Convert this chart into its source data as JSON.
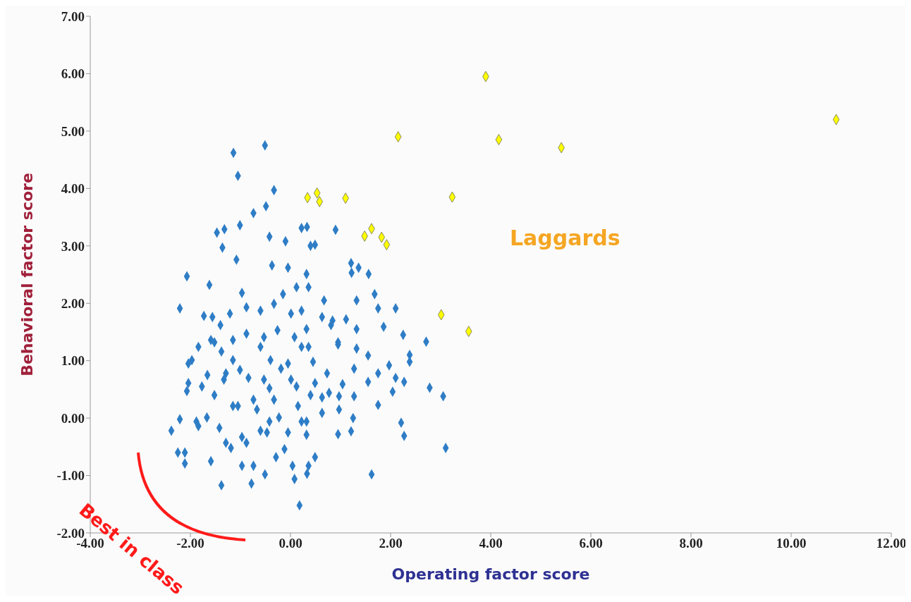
{
  "chart_data": {
    "type": "scatter",
    "xlabel": "Operating factor score",
    "ylabel": "Behavioral factor score",
    "marker": "diamond",
    "grid": false,
    "legend": false,
    "xlim": [
      -4,
      12
    ],
    "xticks": [
      {
        "value": -4,
        "label": "-4.00"
      },
      {
        "value": -2,
        "label": "-2.00"
      },
      {
        "value": 0,
        "label": "0.00"
      },
      {
        "value": 2,
        "label": "2.00"
      },
      {
        "value": 4,
        "label": "4.00"
      },
      {
        "value": 6,
        "label": "6.00"
      },
      {
        "value": 8,
        "label": "8.00"
      },
      {
        "value": 10,
        "label": "10.00"
      },
      {
        "value": 12,
        "label": "12.00"
      }
    ],
    "ylim": [
      -2,
      7
    ],
    "yticks": [
      {
        "value": -2,
        "label": "-2.00"
      },
      {
        "value": -1,
        "label": "-1.00"
      },
      {
        "value": 0,
        "label": "0.00"
      },
      {
        "value": 1,
        "label": "1.00"
      },
      {
        "value": 2,
        "label": "2.00"
      },
      {
        "value": 3,
        "label": "3.00"
      },
      {
        "value": 4,
        "label": "4.00"
      },
      {
        "value": 5,
        "label": "5.00"
      },
      {
        "value": 6,
        "label": "6.00"
      },
      {
        "value": 7,
        "label": "7.00"
      }
    ],
    "annotations": [
      "Laggards",
      "Best in class"
    ],
    "series": [
      {
        "color": "#2e7dc6",
        "x": [
          -0.51,
          -1.14,
          -1.05,
          -0.33,
          -0.49,
          -0.74,
          -1.01,
          -1.47,
          -1.32,
          -1.36,
          -1.08,
          -2.07,
          -1.62,
          -2.21,
          -0.97,
          -0.42,
          -0.1,
          0.22,
          0.4,
          -0.37,
          -0.05,
          0.32,
          0.12,
          -0.15,
          0.33,
          0.9,
          0.49,
          1.21,
          1.36,
          1.22,
          1.56,
          0.36,
          0.67,
          1.32,
          1.68,
          1.75,
          2.1,
          0.81,
          1.11,
          1.32,
          1.86,
          2.25,
          2.71,
          0.95,
          0.32,
          2.38,
          2.38,
          1.97,
          1.75,
          1.55,
          2.1,
          2.27,
          2.04,
          2.78,
          3.05,
          1.75,
          1.27,
          0.97,
          1.25,
          0.95,
          1.21,
          2.21,
          2.27,
          3.1,
          1.62,
          0.49,
          0.33,
          1.27,
          1.32,
          0.95,
          1.55,
          1.04,
          0.45,
          0.63,
          0.32,
          0.73,
          -1.97,
          -2.07,
          -1.52,
          -1.66,
          -2.21,
          -1.88,
          -1.67,
          -2.38,
          -2.11,
          -1.59,
          -1.38,
          -1.52,
          -1.33,
          -1.15,
          -1.42,
          -1.19,
          -0.97,
          -0.78,
          -0.51,
          -0.29,
          0.04,
          0.18,
          -0.05,
          -0.6,
          -0.97,
          -0.74,
          -1.05,
          -0.42,
          -0.19,
          -0.84,
          -1.38,
          -0.6,
          0.22,
          0.12,
          0.4,
          0.22,
          0.32,
          -0.23,
          -0.42,
          -1.73,
          -1.56,
          -1.4,
          -1.21,
          -0.88,
          -0.6,
          -0.33,
          0.01,
          0.22,
          0.63,
          0.84,
          -0.88,
          -1.15,
          -0.53,
          -0.26,
          0.08,
          0.36,
          -1.59,
          -1.84,
          -2.04,
          -0.05,
          -0.4,
          -1.01,
          -1.29,
          -1.77,
          -2.04,
          -0.53,
          0.01,
          0.49,
          0.77,
          -0.33,
          -0.67,
          -1.15,
          0.15,
          0.63,
          -0.47,
          -0.88,
          -0.12,
          -1.29,
          -1.84,
          -2.25,
          -2.11,
          -0.74,
          0.36,
          0.08,
          0.97
        ],
        "values": [
          4.75,
          4.62,
          4.22,
          3.97,
          3.69,
          3.57,
          3.36,
          3.23,
          3.29,
          2.97,
          2.76,
          2.47,
          2.32,
          1.91,
          2.18,
          3.16,
          3.08,
          3.31,
          3,
          2.66,
          2.62,
          2.51,
          2.28,
          2.16,
          3.33,
          3.28,
          3.02,
          2.7,
          2.62,
          2.53,
          2.51,
          2.28,
          2.05,
          2.05,
          2.16,
          1.91,
          1.91,
          1.62,
          1.72,
          1.55,
          1.59,
          1.45,
          1.33,
          1.32,
          1.55,
          1.1,
          0.98,
          0.92,
          0.78,
          0.63,
          0.7,
          0.63,
          0.46,
          0.53,
          0.38,
          0.23,
          0.38,
          0.15,
          0,
          -0.28,
          -0.23,
          -0.08,
          -0.31,
          -0.52,
          -0.98,
          -0.68,
          -0.97,
          0.86,
          1.21,
          1.28,
          1.09,
          0.59,
          0.98,
          0.36,
          -0.06,
          0.78,
          1.01,
          0.47,
          1.32,
          0.75,
          -0.02,
          -0.06,
          0.01,
          -0.22,
          -0.6,
          -0.75,
          -1.17,
          0.4,
          0.67,
          1.01,
          -0.17,
          -0.52,
          -0.83,
          -1.14,
          -0.98,
          -0.68,
          -0.83,
          -1.52,
          -0.25,
          -0.22,
          -0.33,
          0.32,
          0.21,
          0.52,
          0.86,
          0.7,
          1.16,
          1.24,
          1.24,
          0.55,
          0.4,
          -0.06,
          -0.29,
          0.01,
          -0.06,
          1.78,
          1.76,
          1.62,
          1.82,
          1.93,
          1.87,
          1.99,
          1.82,
          1.87,
          1.76,
          1.7,
          1.47,
          1.36,
          1.41,
          1.53,
          1.41,
          1.24,
          1.36,
          1.24,
          0.95,
          0.95,
          1.01,
          0.84,
          0.78,
          0.55,
          0.61,
          0.67,
          0.67,
          0.61,
          0.44,
          0.32,
          0.15,
          0.21,
          0.21,
          0.09,
          -0.25,
          -0.43,
          -0.54,
          -0.43,
          -0.14,
          -0.6,
          -0.79,
          -0.83,
          -0.83,
          -1.06,
          0.38
        ]
      },
      {
        "color": "#ffff00",
        "x": [
          3.9,
          2.15,
          4.16,
          5.41,
          10.9,
          0.34,
          0.53,
          0.58,
          1.1,
          3.23,
          1.48,
          1.62,
          1.82,
          1.92,
          3.01,
          3.56
        ],
        "values": [
          5.95,
          4.9,
          4.85,
          4.71,
          5.2,
          3.84,
          3.92,
          3.77,
          3.83,
          3.85,
          3.17,
          3.3,
          3.15,
          3.02,
          1.8,
          1.51
        ]
      }
    ]
  }
}
